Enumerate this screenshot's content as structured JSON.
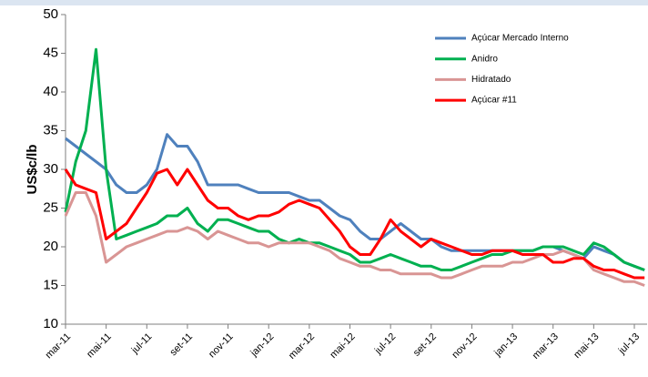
{
  "chart_data": {
    "type": "line",
    "y_label": "US$c/lb",
    "categories": [
      "mar-11",
      null,
      null,
      null,
      "mai-11",
      null,
      null,
      null,
      "jul-11",
      null,
      null,
      null,
      "set-11",
      null,
      null,
      null,
      "nov-11",
      null,
      null,
      null,
      "jan-12",
      null,
      null,
      null,
      "mar-12",
      null,
      null,
      null,
      "mai-12",
      null,
      null,
      null,
      "jul-12",
      null,
      null,
      null,
      "set-12",
      null,
      null,
      null,
      "nov-12",
      null,
      null,
      null,
      "jan-13",
      null,
      null,
      null,
      "mar-13",
      null,
      null,
      null,
      "mai-13",
      null,
      null,
      null,
      "jul-13",
      null
    ],
    "series": [
      {
        "name": "Açúcar Mercado Interno",
        "color": "#4f81bd",
        "values": [
          34,
          33,
          32,
          31,
          30,
          28,
          27,
          27,
          28,
          30,
          34.5,
          33,
          33,
          31,
          28,
          28,
          28,
          28,
          27.5,
          27,
          27,
          27,
          27,
          26.5,
          26,
          26,
          25,
          24,
          23.5,
          22,
          21,
          21,
          22,
          23,
          22,
          21,
          21,
          20,
          19.5,
          19.5,
          19.5,
          19.5,
          19.5,
          19.5,
          19.5,
          19.5,
          19.5,
          20,
          20,
          19.5,
          19,
          18.5,
          20,
          19.5,
          19,
          18,
          17.5,
          17
        ]
      },
      {
        "name": "Anidro",
        "color": "#00b050",
        "values": [
          24.5,
          31,
          35,
          45.5,
          30,
          21,
          21.5,
          22,
          22.5,
          23,
          24,
          24,
          25,
          23,
          22,
          23.5,
          23.5,
          23,
          22.5,
          22,
          22,
          21,
          20.5,
          21,
          20.5,
          20.5,
          20,
          19.5,
          19,
          18,
          18,
          18.5,
          19,
          18.5,
          18,
          17.5,
          17.5,
          17,
          17,
          17.5,
          18,
          18.5,
          19,
          19,
          19.5,
          19.5,
          19.5,
          20,
          20,
          20,
          19.5,
          19,
          20.5,
          20,
          19,
          18,
          17.5,
          17
        ]
      },
      {
        "name": "Hidratado",
        "color": "#d99594",
        "values": [
          24,
          27,
          27,
          24,
          18,
          19,
          20,
          20.5,
          21,
          21.5,
          22,
          22,
          22.5,
          22,
          21,
          22,
          21.5,
          21,
          20.5,
          20.5,
          20,
          20.5,
          20.5,
          20.5,
          20.5,
          20,
          19.5,
          18.5,
          18,
          17.5,
          17.5,
          17,
          17,
          16.5,
          16.5,
          16.5,
          16.5,
          16,
          16,
          16.5,
          17,
          17.5,
          17.5,
          17.5,
          18,
          18,
          18.5,
          19,
          19,
          19.5,
          19,
          18.5,
          17,
          16.5,
          16,
          15.5,
          15.5,
          15
        ]
      },
      {
        "name": "Açúcar #11",
        "color": "#ff0000",
        "values": [
          30,
          28,
          27.5,
          27,
          21,
          22,
          23,
          25,
          27,
          29.5,
          30,
          28,
          30,
          28,
          26,
          25,
          25,
          24,
          23.5,
          24,
          24,
          24.5,
          25.5,
          26,
          25.5,
          25,
          23.5,
          22,
          20,
          19,
          19,
          21,
          23.5,
          22,
          21,
          20,
          21,
          20.5,
          20,
          19.5,
          19,
          19,
          19.5,
          19.5,
          19.5,
          19,
          19,
          19,
          18,
          18,
          18.5,
          18.5,
          17.5,
          17,
          17,
          16.5,
          16,
          16
        ]
      }
    ],
    "ylim": [
      10,
      50
    ],
    "yticks": [
      10,
      15,
      20,
      25,
      30,
      35,
      40,
      45,
      50
    ],
    "grid": false,
    "legend": "upper-right"
  }
}
